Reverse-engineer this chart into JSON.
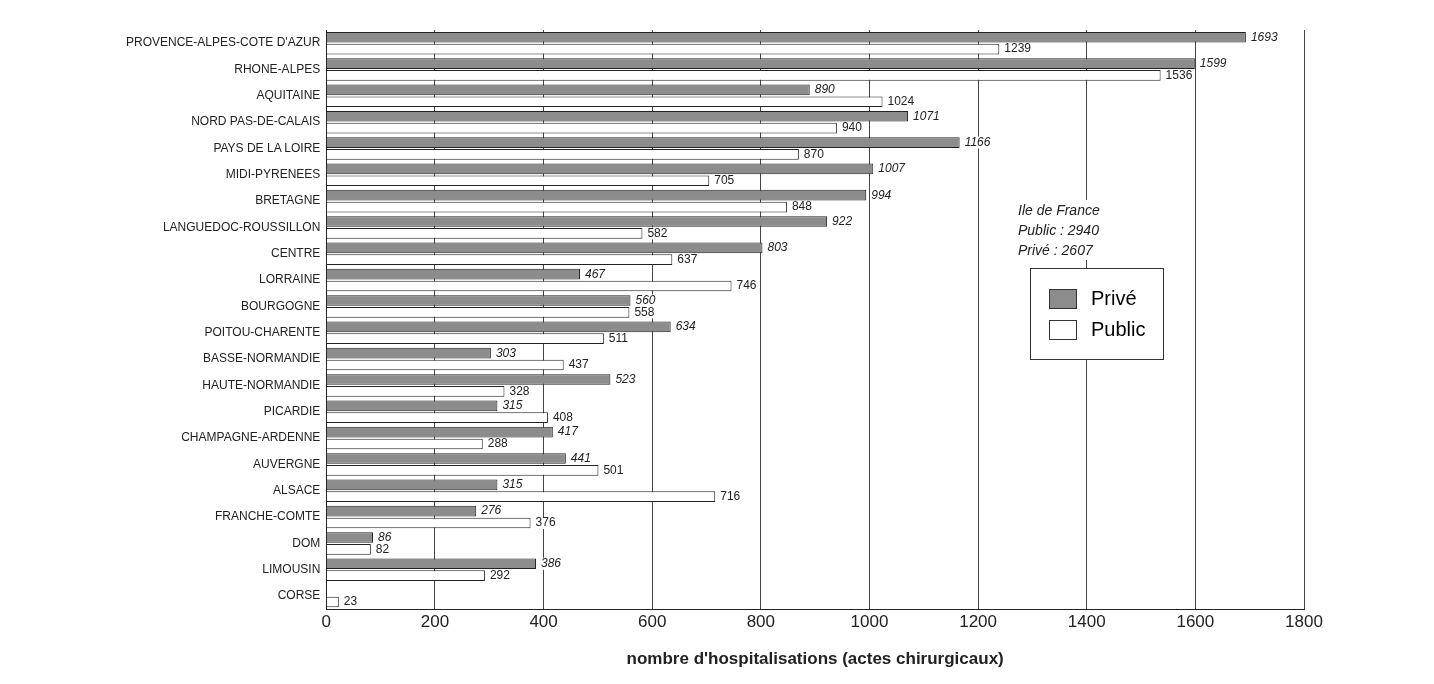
{
  "chart_data": {
    "type": "bar",
    "orientation": "horizontal",
    "xlabel": "nombre d'hospitalisations (actes chirurgicaux)",
    "categories": [
      "PROVENCE-ALPES-COTE D'AZUR",
      "RHONE-ALPES",
      "AQUITAINE",
      "NORD PAS-DE-CALAIS",
      "PAYS DE LA LOIRE",
      "MIDI-PYRENEES",
      "BRETAGNE",
      "LANGUEDOC-ROUSSILLON",
      "CENTRE",
      "LORRAINE",
      "BOURGOGNE",
      "POITOU-CHARENTE",
      "BASSE-NORMANDIE",
      "HAUTE-NORMANDIE",
      "PICARDIE",
      "CHAMPAGNE-ARDENNE",
      "AUVERGNE",
      "ALSACE",
      "FRANCHE-COMTE",
      "DOM",
      "LIMOUSIN",
      "CORSE"
    ],
    "series": [
      {
        "name": "Privé",
        "color": "#8c8c8c",
        "values": [
          1693,
          1599,
          890,
          1071,
          1166,
          1007,
          994,
          922,
          803,
          467,
          560,
          634,
          303,
          523,
          315,
          417,
          441,
          315,
          276,
          86,
          386,
          null
        ]
      },
      {
        "name": "Public",
        "color": "#ffffff",
        "values": [
          1239,
          1536,
          1024,
          940,
          870,
          705,
          848,
          582,
          637,
          746,
          558,
          511,
          437,
          328,
          408,
          288,
          501,
          716,
          376,
          82,
          292,
          23
        ]
      }
    ],
    "xlim": [
      0,
      1800
    ],
    "xticks": [
      0,
      200,
      400,
      600,
      800,
      1000,
      1200,
      1400,
      1600,
      1800
    ],
    "grid": "x",
    "legend": "right",
    "data_labels": true,
    "annotations": [
      "Ile de France",
      "Public : 2940",
      "Privé : 2607"
    ]
  }
}
